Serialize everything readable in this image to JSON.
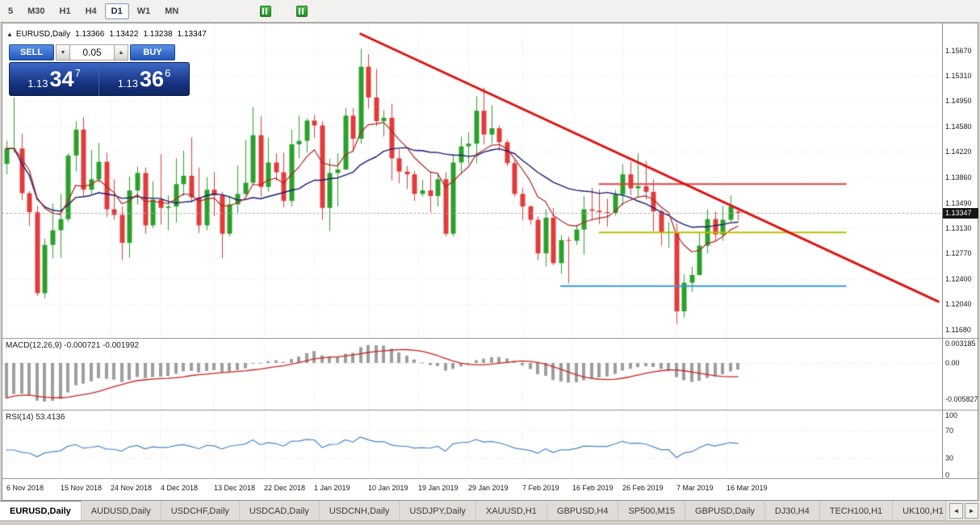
{
  "toolbar": {
    "timeframes": [
      {
        "label": "5",
        "active": false
      },
      {
        "label": "M30",
        "active": false
      },
      {
        "label": "H1",
        "active": false
      },
      {
        "label": "H4",
        "active": false
      },
      {
        "label": "D1",
        "active": true
      },
      {
        "label": "W1",
        "active": false
      },
      {
        "label": "MN",
        "active": false
      }
    ]
  },
  "chart_header": {
    "collapse_icon": "▲",
    "symbol": "EURUSD,Daily",
    "open": "1.13366",
    "high": "1.13422",
    "low": "1.13238",
    "close": "1.13347"
  },
  "trade_panel": {
    "sell_label": "SELL",
    "buy_label": "BUY",
    "volume": "0.05",
    "dec_icon": "▼",
    "inc_icon": "▲",
    "sell_price": {
      "prefix": "1.13",
      "big": "34",
      "sup": "7"
    },
    "buy_price": {
      "prefix": "1.13",
      "big": "36",
      "sup": "6"
    }
  },
  "macd_panel": {
    "label": "MACD(12,26,9) -0.000721 -0.001992",
    "axis": [
      "0.003185",
      "0.00",
      "-0.005827"
    ]
  },
  "rsi_panel": {
    "label": "RSI(14) 53.4136",
    "axis": [
      "100",
      "70",
      "30",
      "0"
    ]
  },
  "tabs": {
    "items": [
      {
        "label": "EURUSD,Daily",
        "active": true
      },
      {
        "label": "AUDUSD,Daily",
        "active": false
      },
      {
        "label": "USDCHF,Daily",
        "active": false
      },
      {
        "label": "USDCAD,Daily",
        "active": false
      },
      {
        "label": "USDCNH,Daily",
        "active": false
      },
      {
        "label": "USDJPY,Daily",
        "active": false
      },
      {
        "label": "XAUUSD,H1",
        "active": false
      },
      {
        "label": "GBPUSD,H4",
        "active": false
      },
      {
        "label": "SP500,M15",
        "active": false
      },
      {
        "label": "GBPUSD,Daily",
        "active": false
      },
      {
        "label": "DJ30,H4",
        "active": false
      },
      {
        "label": "TECH100,H1",
        "active": false
      },
      {
        "label": "UK100,H1",
        "active": false
      }
    ],
    "scroll_left": "◄",
    "scroll_right": "►"
  },
  "chart_data": {
    "type": "candlestick",
    "symbol": "EURUSD",
    "timeframe": "D1",
    "title": "EURUSD,Daily",
    "total_slots": 122,
    "price_range": [
      1.1156,
      1.1606
    ],
    "current_price": 1.13347,
    "current_price_label": "1.13347",
    "y_ticks": [
      "1.15670",
      "1.15310",
      "1.14950",
      "1.14580",
      "1.14220",
      "1.13860",
      "1.13490",
      "1.13130",
      "1.12770",
      "1.12400",
      "1.12040",
      "1.11680"
    ],
    "x_ticks": [
      {
        "label": "6 Nov 2018",
        "slot": 0
      },
      {
        "label": "15 Nov 2018",
        "slot": 7
      },
      {
        "label": "24 Nov 2018",
        "slot": 13.5
      },
      {
        "label": "4 Dec 2018",
        "slot": 20
      },
      {
        "label": "13 Dec 2018",
        "slot": 27
      },
      {
        "label": "22 Dec 2018",
        "slot": 33.5
      },
      {
        "label": "1 Jan 2019",
        "slot": 40
      },
      {
        "label": "10 Jan 2019",
        "slot": 47
      },
      {
        "label": "19 Jan 2019",
        "slot": 53.5
      },
      {
        "label": "29 Jan 2019",
        "slot": 60
      },
      {
        "label": "7 Feb 2019",
        "slot": 67
      },
      {
        "label": "16 Feb 2019",
        "slot": 73.5
      },
      {
        "label": "26 Feb 2019",
        "slot": 80
      },
      {
        "label": "7 Mar 2019",
        "slot": 87
      },
      {
        "label": "16 Mar 2019",
        "slot": 93.5
      }
    ],
    "ohlc": [
      [
        1.1405,
        1.1438,
        1.139,
        1.1427
      ],
      [
        1.1427,
        1.15,
        1.1421,
        1.1427
      ],
      [
        1.1427,
        1.1448,
        1.1353,
        1.1363
      ],
      [
        1.1363,
        1.1366,
        1.1316,
        1.1336
      ],
      [
        1.1336,
        1.1345,
        1.1216,
        1.122
      ],
      [
        1.122,
        1.1298,
        1.1213,
        1.1289
      ],
      [
        1.1289,
        1.1348,
        1.127,
        1.131
      ],
      [
        1.131,
        1.1362,
        1.1271,
        1.1326
      ],
      [
        1.1326,
        1.142,
        1.1322,
        1.1417
      ],
      [
        1.1417,
        1.1466,
        1.1394,
        1.1454
      ],
      [
        1.1454,
        1.1472,
        1.1358,
        1.1368
      ],
      [
        1.1368,
        1.1425,
        1.1361,
        1.1383
      ],
      [
        1.1383,
        1.1435,
        1.1378,
        1.1408
      ],
      [
        1.1408,
        1.1421,
        1.1329,
        1.134
      ],
      [
        1.134,
        1.1383,
        1.1325,
        1.1332
      ],
      [
        1.1332,
        1.1344,
        1.1267,
        1.1292
      ],
      [
        1.1292,
        1.1387,
        1.1271,
        1.1367
      ],
      [
        1.1367,
        1.1401,
        1.1347,
        1.1392
      ],
      [
        1.1392,
        1.14,
        1.1305,
        1.1317
      ],
      [
        1.1317,
        1.138,
        1.1313,
        1.1354
      ],
      [
        1.1354,
        1.1419,
        1.1318,
        1.1342
      ],
      [
        1.1342,
        1.136,
        1.131,
        1.1344
      ],
      [
        1.1344,
        1.1413,
        1.1321,
        1.1376
      ],
      [
        1.1376,
        1.1424,
        1.1359,
        1.1388
      ],
      [
        1.1388,
        1.1443,
        1.135,
        1.1357
      ],
      [
        1.1357,
        1.14,
        1.1306,
        1.1317
      ],
      [
        1.1317,
        1.1386,
        1.131,
        1.1368
      ],
      [
        1.1368,
        1.1393,
        1.133,
        1.136
      ],
      [
        1.136,
        1.1365,
        1.127,
        1.1305
      ],
      [
        1.1305,
        1.1358,
        1.1301,
        1.1347
      ],
      [
        1.1347,
        1.1403,
        1.1335,
        1.1362
      ],
      [
        1.1362,
        1.1439,
        1.136,
        1.1378
      ],
      [
        1.1378,
        1.1486,
        1.1375,
        1.1446
      ],
      [
        1.1446,
        1.1473,
        1.1358,
        1.1372
      ],
      [
        1.1372,
        1.1443,
        1.1365,
        1.1407
      ],
      [
        1.1407,
        1.142,
        1.1381,
        1.1393
      ],
      [
        1.1393,
        1.1421,
        1.1343,
        1.1352
      ],
      [
        1.1352,
        1.1454,
        1.1344,
        1.1433
      ],
      [
        1.1433,
        1.1474,
        1.1413,
        1.1438
      ],
      [
        1.1438,
        1.147,
        1.1421,
        1.1467
      ],
      [
        1.1467,
        1.1475,
        1.1442,
        1.146
      ],
      [
        1.146,
        1.1466,
        1.1325,
        1.1342
      ],
      [
        1.1342,
        1.1412,
        1.1309,
        1.1392
      ],
      [
        1.1392,
        1.142,
        1.1344,
        1.1397
      ],
      [
        1.1397,
        1.1485,
        1.1396,
        1.1474
      ],
      [
        1.1474,
        1.1485,
        1.1422,
        1.1441
      ],
      [
        1.1441,
        1.157,
        1.1434,
        1.1544
      ],
      [
        1.1544,
        1.1562,
        1.1484,
        1.15
      ],
      [
        1.15,
        1.1541,
        1.1459,
        1.1466
      ],
      [
        1.1466,
        1.1482,
        1.1444,
        1.1471
      ],
      [
        1.1471,
        1.1491,
        1.1381,
        1.1413
      ],
      [
        1.1413,
        1.1426,
        1.1377,
        1.1394
      ],
      [
        1.1394,
        1.1402,
        1.1369,
        1.139
      ],
      [
        1.139,
        1.1395,
        1.1352,
        1.1362
      ],
      [
        1.1362,
        1.1382,
        1.1358,
        1.1367
      ],
      [
        1.1367,
        1.1394,
        1.1336,
        1.1359
      ],
      [
        1.1359,
        1.1392,
        1.1344,
        1.1383
      ],
      [
        1.1383,
        1.1393,
        1.1301,
        1.1305
      ],
      [
        1.1305,
        1.1419,
        1.1301,
        1.1407
      ],
      [
        1.1407,
        1.1444,
        1.139,
        1.143
      ],
      [
        1.143,
        1.145,
        1.1405,
        1.1434
      ],
      [
        1.1434,
        1.1502,
        1.1406,
        1.1481
      ],
      [
        1.1481,
        1.1514,
        1.1433,
        1.1447
      ],
      [
        1.1447,
        1.1489,
        1.1434,
        1.1456
      ],
      [
        1.1456,
        1.146,
        1.1424,
        1.1436
      ],
      [
        1.1436,
        1.144,
        1.1402,
        1.1406
      ],
      [
        1.1406,
        1.141,
        1.1358,
        1.1362
      ],
      [
        1.1362,
        1.1371,
        1.1324,
        1.1344
      ],
      [
        1.1344,
        1.1346,
        1.1318,
        1.1325
      ],
      [
        1.1325,
        1.133,
        1.1267,
        1.1277
      ],
      [
        1.1277,
        1.134,
        1.1258,
        1.1328
      ],
      [
        1.1328,
        1.1342,
        1.126,
        1.1263
      ],
      [
        1.1263,
        1.1303,
        1.1248,
        1.1296
      ],
      [
        1.1296,
        1.1301,
        1.1234,
        1.1295
      ],
      [
        1.1295,
        1.1318,
        1.1289,
        1.1311
      ],
      [
        1.1311,
        1.1359,
        1.1275,
        1.134
      ],
      [
        1.134,
        1.1371,
        1.1324,
        1.1338
      ],
      [
        1.1338,
        1.1368,
        1.1319,
        1.1336
      ],
      [
        1.1336,
        1.1355,
        1.1315,
        1.1335
      ],
      [
        1.1335,
        1.1368,
        1.1331,
        1.1361
      ],
      [
        1.1361,
        1.1404,
        1.1345,
        1.139
      ],
      [
        1.139,
        1.1408,
        1.136,
        1.137
      ],
      [
        1.137,
        1.142,
        1.1358,
        1.1373
      ],
      [
        1.1373,
        1.1409,
        1.1354,
        1.1365
      ],
      [
        1.1365,
        1.1383,
        1.1309,
        1.1337
      ],
      [
        1.1337,
        1.134,
        1.1288,
        1.1306
      ],
      [
        1.1306,
        1.1322,
        1.1285,
        1.1307
      ],
      [
        1.1307,
        1.132,
        1.1176,
        1.1194
      ],
      [
        1.1194,
        1.1247,
        1.1185,
        1.1235
      ],
      [
        1.1235,
        1.1258,
        1.1222,
        1.1246
      ],
      [
        1.1246,
        1.1306,
        1.1245,
        1.1288
      ],
      [
        1.1288,
        1.134,
        1.1277,
        1.1326
      ],
      [
        1.1326,
        1.1337,
        1.1294,
        1.1304
      ],
      [
        1.1304,
        1.1345,
        1.1295,
        1.1325
      ],
      [
        1.1325,
        1.136,
        1.1321,
        1.1344
      ],
      [
        1.13366,
        1.13422,
        1.13238,
        1.13347
      ]
    ],
    "indicators": {
      "ma_fast": {
        "type": "ema",
        "period": 8,
        "color": "#b22222"
      },
      "ma_slow": {
        "type": "sma",
        "period": 21,
        "color": "#1a1a70"
      },
      "macd": {
        "fast": 12,
        "slow": 26,
        "signal": 9,
        "value": -0.000721,
        "signal_value": -0.001992,
        "axis_max": 0.003185,
        "axis_min": -0.005827,
        "histogram_color": "#9e9e9e",
        "signal_color": "#cc2222"
      },
      "rsi": {
        "period": 14,
        "value": 53.4136,
        "color": "#4a86c8",
        "levels": [
          70,
          30
        ]
      }
    },
    "objects": {
      "trendline": {
        "from_slot": 46,
        "from_price": 1.1591,
        "to_slot": 121,
        "to_price": 1.1208,
        "color": "#dd1111",
        "width": 3
      },
      "hlines": [
        {
          "price": 1.1376,
          "from_slot": 77,
          "to_slot": 109,
          "color": "#e04040",
          "width": 2
        },
        {
          "price": 1.1307,
          "from_slot": 77,
          "to_slot": 109,
          "color": "#bfbf00",
          "width": 2
        },
        {
          "price": 1.123,
          "from_slot": 72,
          "to_slot": 109,
          "color": "#3a99e0",
          "width": 2
        }
      ]
    },
    "colors": {
      "bull": "#2aa12a",
      "bear": "#e23b3b",
      "grid": "#e3e3e3",
      "bid_line": "#aaaaaa"
    }
  }
}
